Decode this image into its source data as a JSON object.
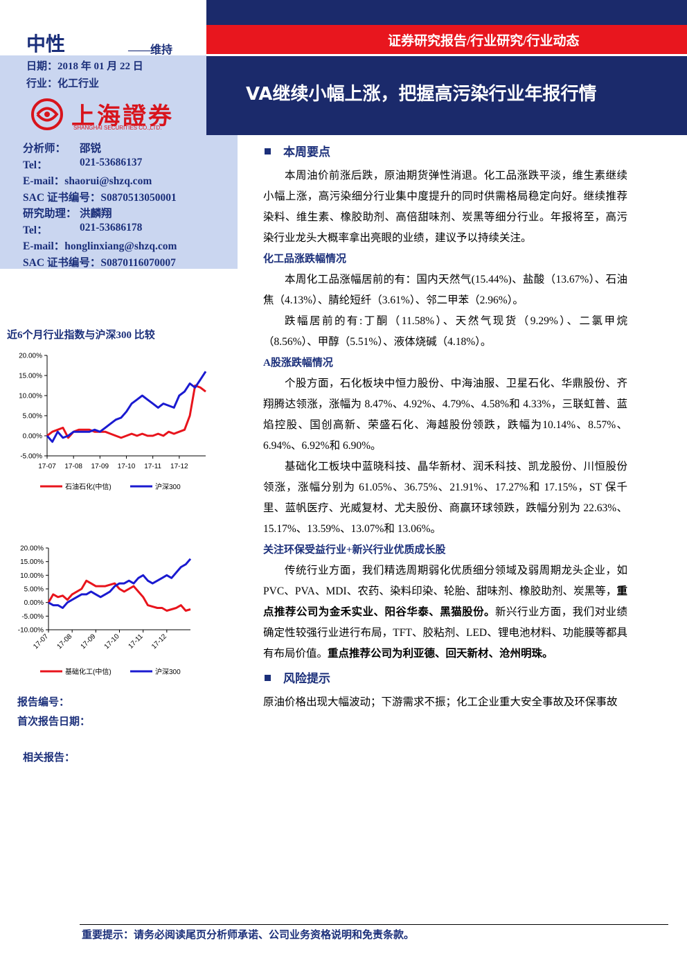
{
  "header": {
    "rating": "中性",
    "rating_action": "——维持",
    "date": "日期：2018 年 01 月 22 日",
    "industry": "行业：化工行业",
    "company_cn": "上海證券",
    "company_en": "SHANGHAI SECURITIES CO.,LTD.",
    "report_type": "证券研究报告/行业研究/行业动态",
    "title": "VA继续小幅上涨，把握高污染行业年报行情"
  },
  "analysts": [
    {
      "label": "分析师：",
      "value": "邵锐"
    },
    {
      "label": "Tel：",
      "value": "021-53686137"
    },
    {
      "label": "E-mail：",
      "value": "shaorui@shzq.com"
    },
    {
      "label": "SAC 证书编号：",
      "value": "S0870513050001"
    },
    {
      "label": "研究助理：",
      "value": "洪麟翔"
    },
    {
      "label": "Tel：",
      "value": "021-53686178"
    },
    {
      "label": "E-mail：",
      "value": "honglinxiang@shzq.com"
    },
    {
      "label": "SAC 证书编号：",
      "value": "S0870116070007"
    }
  ],
  "chart_data": [
    {
      "type": "line",
      "title": "近6个月行业指数与沪深300 比较",
      "categories": [
        "17-07",
        null,
        null,
        null,
        null,
        "17-08",
        null,
        null,
        null,
        null,
        "17-09",
        null,
        null,
        null,
        null,
        "17-10",
        null,
        null,
        null,
        null,
        "17-11",
        null,
        null,
        null,
        null,
        "17-12",
        null,
        null,
        null,
        null,
        null
      ],
      "series": [
        {
          "name": "石油石化(中信)",
          "color": "#e8141c",
          "values": [
            0,
            1,
            1.5,
            2,
            -0.5,
            1,
            1.5,
            1.5,
            1.5,
            1,
            1,
            1,
            0.5,
            0,
            -0.5,
            0,
            0.5,
            0,
            0.5,
            0,
            0,
            0.5,
            0,
            1,
            0.5,
            1,
            1.5,
            5,
            12.5,
            12,
            11
          ]
        },
        {
          "name": "沪深300",
          "color": "#1a1ad0",
          "values": [
            0,
            -1.5,
            1,
            -0.5,
            0,
            1,
            1,
            1,
            1,
            1.5,
            1,
            2,
            3,
            4,
            4.5,
            6,
            8,
            9,
            10,
            9,
            8,
            7,
            8,
            7.5,
            7,
            10,
            11,
            13,
            12,
            14,
            16
          ]
        }
      ],
      "ylim": [
        -5,
        20
      ],
      "yticks": [
        {
          "value": -5,
          "label": "-5.00%"
        },
        {
          "value": 0,
          "label": "0.00%"
        },
        {
          "value": 5,
          "label": "5.00%"
        },
        {
          "value": 10,
          "label": "10.00%"
        },
        {
          "value": 15,
          "label": "15.00%"
        },
        {
          "value": 20,
          "label": "20.00%"
        }
      ]
    },
    {
      "type": "line",
      "categories": [
        "17-07",
        null,
        null,
        null,
        null,
        "17-08",
        null,
        null,
        null,
        null,
        "17-09",
        null,
        null,
        null,
        null,
        "17-10",
        null,
        null,
        null,
        null,
        "17-11",
        null,
        null,
        null,
        null,
        "17-12",
        null,
        null,
        null,
        null,
        null
      ],
      "series": [
        {
          "name": "基础化工(中信)",
          "color": "#e8141c",
          "values": [
            0,
            3,
            2,
            2.5,
            1,
            3,
            4,
            5,
            8,
            7,
            6,
            6,
            6,
            6.5,
            7,
            5,
            4,
            5,
            6,
            4,
            2,
            -1,
            -1.5,
            -2,
            -2,
            -3,
            -2.5,
            -2,
            -1,
            -3,
            -2.5
          ]
        },
        {
          "name": "沪深300",
          "color": "#1a1ad0",
          "values": [
            0,
            -1,
            -1,
            -2,
            0,
            1,
            2,
            3,
            3,
            4,
            3,
            2,
            3,
            4,
            6,
            7,
            7,
            8,
            7,
            9,
            10,
            8,
            7,
            8,
            9,
            10,
            9,
            11,
            13,
            14,
            16
          ]
        }
      ],
      "ylim": [
        -10,
        20
      ],
      "yticks": [
        {
          "value": -10,
          "label": "-10.00%"
        },
        {
          "value": -5,
          "label": "-5.00%"
        },
        {
          "value": 0,
          "label": "0.00%"
        },
        {
          "value": 5,
          "label": "5.00%"
        },
        {
          "value": 10,
          "label": "10.00%"
        },
        {
          "value": 15,
          "label": "15.00%"
        },
        {
          "value": 20,
          "label": "20.00%"
        }
      ]
    }
  ],
  "report_info": {
    "report_no": "报告编号：",
    "first_date": "首次报告日期：",
    "related": "相关报告："
  },
  "sections": [
    {
      "heading": "本周要点",
      "paragraphs": [
        "本周油价前涨后跌，原油期货弹性消退。化工品涨跌平淡，维生素继续小幅上涨，高污染细分行业集中度提升的同时供需格局稳定向好。继续推荐染料、维生素、橡胶助剂、高倍甜味剂、炭黑等细分行业。年报将至，高污染行业龙头大概率拿出亮眼的业绩，建议予以持续关注。"
      ],
      "subsections": [
        {
          "heading": "化工品涨跌幅情况",
          "paragraphs": [
            "本周化工品涨幅居前的有：国内天然气(15.44%)、盐酸（13.67%）、石油焦（4.13%）、腈纶短纤（3.61%）、邻二甲苯（2.96%）。",
            "跌幅居前的有:丁酮（11.58%）、天然气现货（9.29%）、二氯甲烷（8.56%）、甲醇（5.51%）、液体烧碱（4.18%）。"
          ]
        },
        {
          "heading": "A股涨跌幅情况",
          "paragraphs": [
            "个股方面，石化板块中恒力股份、中海油服、卫星石化、华鼎股份、齐翔腾达领涨，涨幅为 8.47%、4.92%、4.79%、4.58%和 4.33%，三联虹普、蓝焰控股、国创高新、荣盛石化、海越股份领跌，跌幅为10.14%、8.57%、6.94%、6.92%和 6.90%。",
            "基础化工板块中蓝晓科技、晶华新材、润禾科技、凯龙股份、川恒股份领涨，涨幅分别为 61.05%、36.75%、21.91%、17.27%和 17.15%，ST 保千里、蓝帆医疗、光威复材、尤夫股份、商赢环球领跌，跌幅分别为 22.63%、15.17%、13.59%、13.07%和 13.06%。"
          ]
        },
        {
          "heading": "关注环保受益行业+新兴行业优质成长股",
          "paragraphs": [
            [
              "传统行业方面，我们精选周期弱化优质细分领域及弱周期龙头企业，如 PVC、PVA、MDI、农药、染料印染、轮胎、甜味剂、橡胶助剂、炭黑等，",
              "重点推荐公司为金禾实业、阳谷华泰、黑猫股份。",
              "新兴行业方面，我们对业绩确定性较强行业进行布局，TFT、胶粘剂、LED、锂电池材料、功能膜等都具有布局价值。",
              "重点推荐公司为利亚德、回天新材、沧州明珠。"
            ]
          ]
        }
      ]
    },
    {
      "heading": "风险提示",
      "paragraphs": [
        "原油价格出现大幅波动；下游需求不振；化工企业重大安全事故及环保事故"
      ]
    }
  ],
  "footer": "重要提示：请务必阅读尾页分析师承诺、公司业务资格说明和免责条款。"
}
